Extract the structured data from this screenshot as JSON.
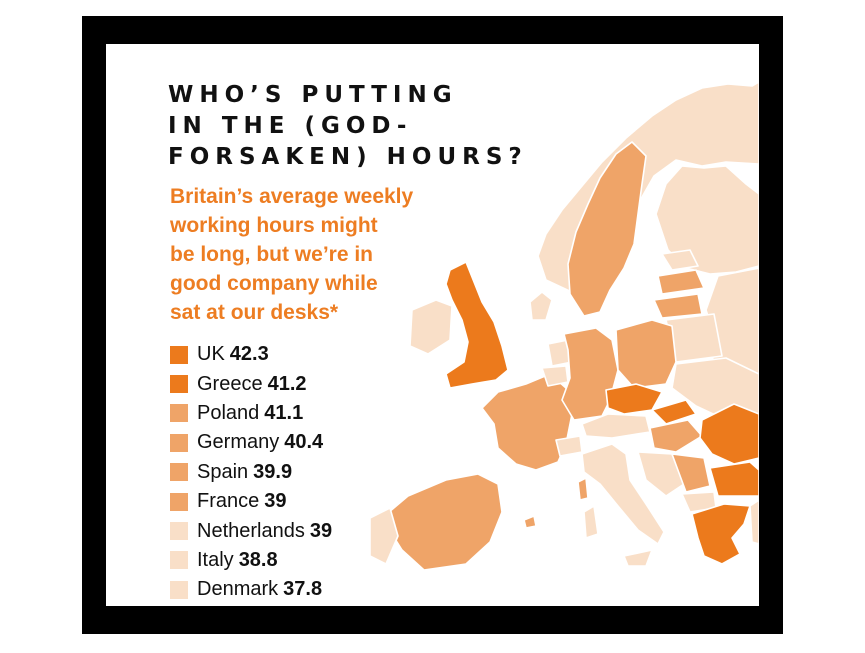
{
  "title_lines": [
    "WHO’S PUTTING",
    "IN THE (GOD-",
    "FORSAKEN) HOURS?"
  ],
  "subtitle_lines": [
    "Britain’s average weekly",
    "working hours might",
    "be long, but we’re in",
    "good company while",
    "sat at our desks*"
  ],
  "colors": {
    "dark_orange": "#ec7a1c",
    "mid_orange": "#efa468",
    "pale": "#f9dfc8",
    "sea": "#ffffff",
    "frame": "#000000"
  },
  "legend": [
    {
      "country": "UK",
      "value": "42.3",
      "color": "#ec7a1c"
    },
    {
      "country": "Greece",
      "value": "41.2",
      "color": "#ec7a1c"
    },
    {
      "country": "Poland",
      "value": "41.1",
      "color": "#efa468"
    },
    {
      "country": "Germany",
      "value": "40.4",
      "color": "#efa468"
    },
    {
      "country": "Spain",
      "value": "39.9",
      "color": "#efa468"
    },
    {
      "country": "France",
      "value": "39",
      "color": "#efa468"
    },
    {
      "country": "Netherlands",
      "value": "39",
      "color": "#f9dfc8"
    },
    {
      "country": "Italy",
      "value": "38.8",
      "color": "#f9dfc8"
    },
    {
      "country": "Denmark",
      "value": "37.8",
      "color": "#f9dfc8"
    }
  ]
}
